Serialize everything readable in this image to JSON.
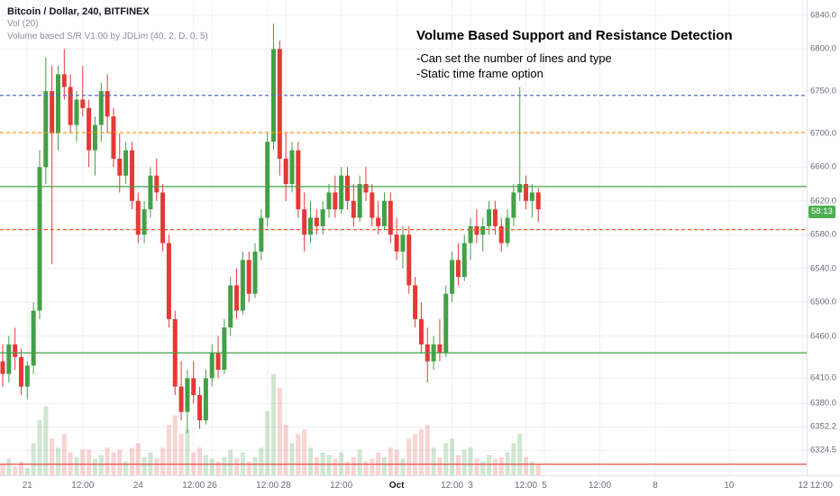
{
  "header": {
    "symbol_line": "Bitcoin / Dollar, 240, BITFINEX",
    "indicator1": "Vol (20)",
    "indicator2": "Volume based S/R V1.00 by JDLim (40, 2, D, 0, 5)"
  },
  "annotation": {
    "title": "Volume Based Support and Resistance Detection",
    "line1": "-Can set the number of lines and type",
    "line2": "-Static time frame option"
  },
  "price_axis": {
    "ticks": [
      {
        "label": "6840.0",
        "price": 6840.0
      },
      {
        "label": "6800.0",
        "price": 6800.0
      },
      {
        "label": "6750.0",
        "price": 6750.0
      },
      {
        "label": "6700.0",
        "price": 6700.0
      },
      {
        "label": "6660.0",
        "price": 6660.0
      },
      {
        "label": "6620.0",
        "price": 6620.0
      },
      {
        "label": "6580.0",
        "price": 6580.0
      },
      {
        "label": "6540.0",
        "price": 6540.0
      },
      {
        "label": "6500.0",
        "price": 6500.0
      },
      {
        "label": "6460.0",
        "price": 6460.0
      },
      {
        "label": "6410.0",
        "price": 6410.0
      },
      {
        "label": "6380.0",
        "price": 6380.0
      },
      {
        "label": "6352.2",
        "price": 6352.2
      },
      {
        "label": "6324.5",
        "price": 6324.5
      }
    ],
    "countdown": {
      "label": "58:13",
      "price": 6607
    }
  },
  "time_axis": {
    "labels": [
      {
        "text": "21",
        "i": 4
      },
      {
        "text": "12:00",
        "i": 13
      },
      {
        "text": "24",
        "i": 22
      },
      {
        "text": "12:00",
        "i": 31
      },
      {
        "text": "26",
        "i": 34
      },
      {
        "text": "12:00",
        "i": 43
      },
      {
        "text": "28",
        "i": 46
      },
      {
        "text": "12:00",
        "i": 55
      },
      {
        "text": "Oct",
        "i": 64,
        "bold": true
      },
      {
        "text": "12:00",
        "i": 73
      },
      {
        "text": "3",
        "i": 76
      },
      {
        "text": "12:00",
        "i": 85
      },
      {
        "text": "5",
        "i": 88
      },
      {
        "text": "12:00",
        "i": 97
      },
      {
        "text": "8",
        "i": 106
      },
      {
        "text": "10",
        "i": 118
      },
      {
        "text": "12",
        "i": 130
      },
      {
        "text": "12:00",
        "i": 133
      }
    ]
  },
  "chart_data": {
    "type": "candlestick+volume",
    "title": "Volume Based Support and Resistance Detection",
    "symbol": "Bitcoin / Dollar",
    "interval": "240",
    "exchange": "BITFINEX",
    "price_range": [
      6295,
      6858
    ],
    "candles_format": [
      "open",
      "high",
      "low",
      "close",
      "volume"
    ],
    "candles": [
      [
        6430,
        6450,
        6400,
        6415,
        12
      ],
      [
        6415,
        6460,
        6405,
        6450,
        18
      ],
      [
        6450,
        6470,
        6420,
        6435,
        10
      ],
      [
        6435,
        6445,
        6390,
        6400,
        15
      ],
      [
        6400,
        6430,
        6385,
        6425,
        8
      ],
      [
        6425,
        6500,
        6415,
        6490,
        35
      ],
      [
        6490,
        6680,
        6480,
        6660,
        60
      ],
      [
        6660,
        6790,
        6640,
        6750,
        75
      ],
      [
        6750,
        6780,
        6545,
        6700,
        40
      ],
      [
        6700,
        6780,
        6680,
        6770,
        30
      ],
      [
        6770,
        6800,
        6740,
        6755,
        45
      ],
      [
        6755,
        6770,
        6700,
        6710,
        25
      ],
      [
        6710,
        6750,
        6690,
        6740,
        20
      ],
      [
        6740,
        6780,
        6720,
        6730,
        28
      ],
      [
        6730,
        6740,
        6660,
        6680,
        28
      ],
      [
        6680,
        6720,
        6650,
        6710,
        18
      ],
      [
        6710,
        6760,
        6690,
        6750,
        22
      ],
      [
        6750,
        6770,
        6700,
        6720,
        30
      ],
      [
        6720,
        6730,
        6660,
        6670,
        25
      ],
      [
        6670,
        6700,
        6630,
        6650,
        28
      ],
      [
        6650,
        6690,
        6640,
        6680,
        15
      ],
      [
        6680,
        6690,
        6610,
        6620,
        30
      ],
      [
        6620,
        6630,
        6570,
        6580,
        35
      ],
      [
        6580,
        6620,
        6570,
        6610,
        20
      ],
      [
        6610,
        6660,
        6600,
        6650,
        25
      ],
      [
        6650,
        6670,
        6620,
        6630,
        18
      ],
      [
        6630,
        6640,
        6560,
        6570,
        30
      ],
      [
        6570,
        6580,
        6470,
        6480,
        55
      ],
      [
        6480,
        6490,
        6390,
        6400,
        65
      ],
      [
        6400,
        6430,
        6360,
        6370,
        45
      ],
      [
        6370,
        6420,
        6345,
        6410,
        50
      ],
      [
        6410,
        6430,
        6380,
        6390,
        25
      ],
      [
        6390,
        6400,
        6350,
        6360,
        30
      ],
      [
        6360,
        6420,
        6355,
        6410,
        22
      ],
      [
        6410,
        6450,
        6400,
        6440,
        18
      ],
      [
        6440,
        6460,
        6410,
        6420,
        15
      ],
      [
        6420,
        6480,
        6415,
        6470,
        20
      ],
      [
        6470,
        6530,
        6460,
        6520,
        28
      ],
      [
        6520,
        6540,
        6480,
        6490,
        18
      ],
      [
        6490,
        6560,
        6485,
        6550,
        25
      ],
      [
        6550,
        6560,
        6500,
        6510,
        15
      ],
      [
        6510,
        6570,
        6505,
        6560,
        20
      ],
      [
        6560,
        6610,
        6550,
        6600,
        30
      ],
      [
        6600,
        6700,
        6590,
        6690,
        70
      ],
      [
        6690,
        6830,
        6680,
        6800,
        110
      ],
      [
        6800,
        6810,
        6650,
        6670,
        95
      ],
      [
        6670,
        6700,
        6620,
        6640,
        55
      ],
      [
        6640,
        6690,
        6630,
        6680,
        35
      ],
      [
        6680,
        6690,
        6600,
        6610,
        45
      ],
      [
        6610,
        6630,
        6560,
        6580,
        50
      ],
      [
        6580,
        6620,
        6570,
        6600,
        30
      ],
      [
        6600,
        6610,
        6580,
        6590,
        20
      ],
      [
        6590,
        6620,
        6580,
        6610,
        25
      ],
      [
        6610,
        6640,
        6600,
        6630,
        22
      ],
      [
        6630,
        6650,
        6600,
        6610,
        18
      ],
      [
        6610,
        6660,
        6605,
        6650,
        25
      ],
      [
        6650,
        6660,
        6610,
        6620,
        15
      ],
      [
        6620,
        6640,
        6590,
        6600,
        20
      ],
      [
        6600,
        6650,
        6595,
        6640,
        28
      ],
      [
        6640,
        6660,
        6620,
        6630,
        15
      ],
      [
        6630,
        6640,
        6590,
        6600,
        18
      ],
      [
        6600,
        6620,
        6580,
        6590,
        25
      ],
      [
        6590,
        6630,
        6585,
        6620,
        20
      ],
      [
        6620,
        6630,
        6570,
        6580,
        30
      ],
      [
        6580,
        6600,
        6550,
        6560,
        28
      ],
      [
        6560,
        6590,
        6540,
        6580,
        18
      ],
      [
        6580,
        6590,
        6510,
        6520,
        40
      ],
      [
        6520,
        6530,
        6470,
        6480,
        45
      ],
      [
        6480,
        6500,
        6440,
        6450,
        50
      ],
      [
        6450,
        6470,
        6405,
        6430,
        55
      ],
      [
        6430,
        6460,
        6420,
        6450,
        30
      ],
      [
        6450,
        6480,
        6430,
        6440,
        20
      ],
      [
        6440,
        6520,
        6435,
        6510,
        35
      ],
      [
        6510,
        6560,
        6500,
        6550,
        40
      ],
      [
        6550,
        6570,
        6520,
        6530,
        22
      ],
      [
        6530,
        6580,
        6525,
        6570,
        28
      ],
      [
        6570,
        6600,
        6550,
        6590,
        30
      ],
      [
        6590,
        6610,
        6570,
        6580,
        18
      ],
      [
        6580,
        6600,
        6560,
        6590,
        15
      ],
      [
        6590,
        6620,
        6580,
        6610,
        22
      ],
      [
        6610,
        6620,
        6580,
        6590,
        18
      ],
      [
        6590,
        6600,
        6560,
        6570,
        20
      ],
      [
        6570,
        6610,
        6565,
        6600,
        25
      ],
      [
        6600,
        6640,
        6590,
        6630,
        35
      ],
      [
        6630,
        6755,
        6620,
        6640,
        45
      ],
      [
        6640,
        6650,
        6610,
        6620,
        20
      ],
      [
        6620,
        6640,
        6600,
        6630,
        15
      ],
      [
        6630,
        6635,
        6595,
        6610,
        12
      ]
    ],
    "sr_lines": [
      {
        "name": "resistance-1",
        "price": 6745,
        "color": "#5c6bc0",
        "dash": "4 3"
      },
      {
        "name": "resistance-2",
        "price": 6701,
        "color": "#ff9800",
        "dash": "4 3"
      },
      {
        "name": "resistance-3",
        "price": 6637,
        "color": "#43a047",
        "dash": "0"
      },
      {
        "name": "support-1",
        "price": 6586,
        "color": "#ff5722",
        "dash": "4 3"
      },
      {
        "name": "support-2",
        "price": 6440,
        "color": "#43a047",
        "dash": "0"
      },
      {
        "name": "support-3",
        "price": 6308,
        "color": "#e53935",
        "dash": "0"
      }
    ],
    "colors": {
      "up": "#43a047",
      "down": "#e53935",
      "vol_up": "rgba(67,160,71,0.25)",
      "vol_down": "rgba(229,57,53,0.22)",
      "grid": "#eff1f4",
      "axis_text": "#6a6d78",
      "badge_bg": "#4caf50"
    },
    "legend_position": "top-left",
    "grid": true
  }
}
